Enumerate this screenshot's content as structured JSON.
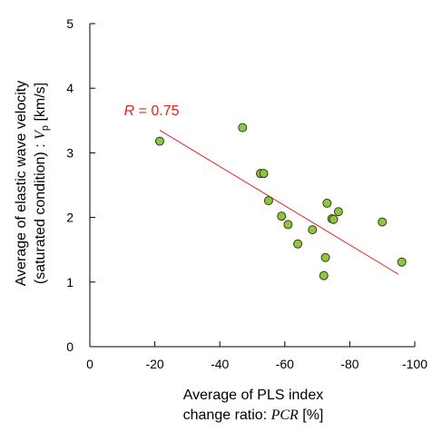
{
  "chart_data": {
    "type": "scatter",
    "title": "",
    "xlabel": {
      "line1": "Average of PLS index",
      "line2_prefix": "change ratio: ",
      "line2_symbol": "PCR",
      "line2_suffix": " [%]"
    },
    "ylabel": {
      "line1": "Average of elastic wave velocity",
      "line2_prefix": "(saturated condition) : ",
      "line2_symbol": "V",
      "line2_subscript": "p",
      "line2_suffix": " [km/s]"
    },
    "xlim": [
      0,
      -100
    ],
    "ylim": [
      0,
      5
    ],
    "xticks": [
      {
        "value": 0,
        "label": "0"
      },
      {
        "value": -20,
        "label": "-20"
      },
      {
        "value": -40,
        "label": "-40"
      },
      {
        "value": -60,
        "label": "-60"
      },
      {
        "value": -80,
        "label": "-80"
      },
      {
        "value": -100,
        "label": "-100"
      }
    ],
    "yticks": [
      {
        "value": 0,
        "label": "0"
      },
      {
        "value": 1,
        "label": "1"
      },
      {
        "value": 2,
        "label": "2"
      },
      {
        "value": 3,
        "label": "3"
      },
      {
        "value": 4,
        "label": "4"
      },
      {
        "value": 5,
        "label": "5"
      }
    ],
    "grid": false,
    "legend": "none",
    "series": [
      {
        "marker_color": "#8dc63f",
        "marker_edge": "#3a3a1a",
        "points": [
          {
            "x": -21.5,
            "y": 3.18
          },
          {
            "x": -47,
            "y": 3.39
          },
          {
            "x": -52.5,
            "y": 2.68
          },
          {
            "x": -53.5,
            "y": 2.68
          },
          {
            "x": -55,
            "y": 2.26
          },
          {
            "x": -59,
            "y": 2.02
          },
          {
            "x": -61,
            "y": 1.89
          },
          {
            "x": -64,
            "y": 1.59
          },
          {
            "x": -68.5,
            "y": 1.81
          },
          {
            "x": -72,
            "y": 1.1
          },
          {
            "x": -72.5,
            "y": 1.38
          },
          {
            "x": -73,
            "y": 2.22
          },
          {
            "x": -74.5,
            "y": 1.98
          },
          {
            "x": -75,
            "y": 1.97
          },
          {
            "x": -76.5,
            "y": 2.09
          },
          {
            "x": -90,
            "y": 1.93
          },
          {
            "x": -96,
            "y": 1.31
          }
        ]
      }
    ],
    "trendline": {
      "color": "#e8201c",
      "x": [
        -21.5,
        -95
      ],
      "y": [
        3.35,
        1.12
      ]
    },
    "annotation": {
      "symbol": "R",
      "text": " = 0.75",
      "color": "#e8201c",
      "anchor": {
        "x": -10.5,
        "y": 3.58
      }
    }
  }
}
